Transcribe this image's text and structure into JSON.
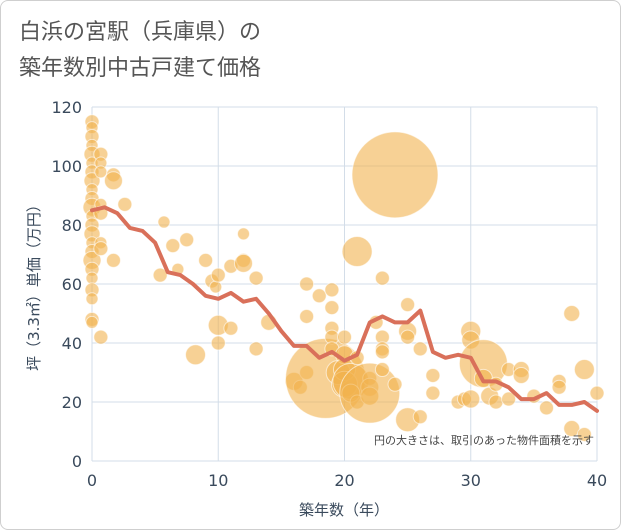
{
  "title_lines": [
    "白浜の宮駅（兵庫県）の",
    "築年数別中古戸建て価格"
  ],
  "chart_data": {
    "type": "scatter",
    "xlabel": "築年数（年）",
    "ylabel": "坪（3.3㎡）単価（万円）",
    "xlim": [
      0,
      40
    ],
    "ylim": [
      0,
      120
    ],
    "x_ticks": [
      0,
      10,
      20,
      30,
      40
    ],
    "y_ticks": [
      0,
      20,
      40,
      60,
      80,
      100,
      120
    ],
    "grid": true,
    "note": "円の大きさは、取引のあった物件面積を示す",
    "colors": {
      "bubble": "#f2b24e",
      "line": "#d9705a",
      "grid": "#d3dde8"
    },
    "bubbles": [
      {
        "x": 0,
        "y": 115,
        "r": 7
      },
      {
        "x": 0,
        "y": 113,
        "r": 6
      },
      {
        "x": 0,
        "y": 110,
        "r": 7
      },
      {
        "x": 0,
        "y": 107,
        "r": 6
      },
      {
        "x": 0,
        "y": 104,
        "r": 8
      },
      {
        "x": 0,
        "y": 101,
        "r": 6
      },
      {
        "x": 0,
        "y": 98,
        "r": 7
      },
      {
        "x": 0,
        "y": 95,
        "r": 8
      },
      {
        "x": 0,
        "y": 92,
        "r": 6
      },
      {
        "x": 0,
        "y": 89,
        "r": 7
      },
      {
        "x": 0,
        "y": 86,
        "r": 9
      },
      {
        "x": 0,
        "y": 83,
        "r": 6
      },
      {
        "x": 0,
        "y": 80,
        "r": 7
      },
      {
        "x": 0,
        "y": 77,
        "r": 8
      },
      {
        "x": 0,
        "y": 74,
        "r": 6
      },
      {
        "x": 0,
        "y": 71,
        "r": 7
      },
      {
        "x": 0,
        "y": 68,
        "r": 9
      },
      {
        "x": 0,
        "y": 65,
        "r": 7
      },
      {
        "x": 0,
        "y": 62,
        "r": 6
      },
      {
        "x": 0,
        "y": 58,
        "r": 7
      },
      {
        "x": 0,
        "y": 55,
        "r": 6
      },
      {
        "x": 0,
        "y": 48,
        "r": 7
      },
      {
        "x": 0,
        "y": 47,
        "r": 6
      },
      {
        "x": 0.7,
        "y": 104,
        "r": 7
      },
      {
        "x": 0.7,
        "y": 101,
        "r": 6
      },
      {
        "x": 0.7,
        "y": 98,
        "r": 6
      },
      {
        "x": 0.7,
        "y": 87,
        "r": 6
      },
      {
        "x": 0.7,
        "y": 84,
        "r": 7
      },
      {
        "x": 0.7,
        "y": 74,
        "r": 6
      },
      {
        "x": 0.7,
        "y": 72,
        "r": 7
      },
      {
        "x": 0.7,
        "y": 42,
        "r": 7
      },
      {
        "x": 1.7,
        "y": 97,
        "r": 7
      },
      {
        "x": 1.7,
        "y": 95,
        "r": 9
      },
      {
        "x": 1.7,
        "y": 68,
        "r": 7
      },
      {
        "x": 2.6,
        "y": 87,
        "r": 7
      },
      {
        "x": 5.4,
        "y": 63,
        "r": 7
      },
      {
        "x": 5.7,
        "y": 81,
        "r": 6
      },
      {
        "x": 6.4,
        "y": 73,
        "r": 7
      },
      {
        "x": 6.8,
        "y": 65,
        "r": 6
      },
      {
        "x": 7.5,
        "y": 75,
        "r": 7
      },
      {
        "x": 8.2,
        "y": 36,
        "r": 10
      },
      {
        "x": 9.0,
        "y": 68,
        "r": 7
      },
      {
        "x": 9.5,
        "y": 61,
        "r": 7
      },
      {
        "x": 9.8,
        "y": 59,
        "r": 6
      },
      {
        "x": 10.0,
        "y": 63,
        "r": 7
      },
      {
        "x": 10.0,
        "y": 46,
        "r": 10
      },
      {
        "x": 10.0,
        "y": 40,
        "r": 7
      },
      {
        "x": 11.0,
        "y": 66,
        "r": 7
      },
      {
        "x": 11.0,
        "y": 45,
        "r": 7
      },
      {
        "x": 12.0,
        "y": 77,
        "r": 6
      },
      {
        "x": 12.0,
        "y": 68,
        "r": 7
      },
      {
        "x": 12.0,
        "y": 67,
        "r": 9
      },
      {
        "x": 13.0,
        "y": 62,
        "r": 7
      },
      {
        "x": 13.0,
        "y": 38,
        "r": 7
      },
      {
        "x": 14.0,
        "y": 47,
        "r": 8
      },
      {
        "x": 16.0,
        "y": 27,
        "r": 9
      },
      {
        "x": 16.5,
        "y": 25,
        "r": 7
      },
      {
        "x": 17.0,
        "y": 60,
        "r": 7
      },
      {
        "x": 17.0,
        "y": 49,
        "r": 7
      },
      {
        "x": 17.0,
        "y": 30,
        "r": 7
      },
      {
        "x": 18.0,
        "y": 56,
        "r": 7
      },
      {
        "x": 18.5,
        "y": 28,
        "r": 40
      },
      {
        "x": 19.0,
        "y": 58,
        "r": 7
      },
      {
        "x": 19.0,
        "y": 52,
        "r": 7
      },
      {
        "x": 19.0,
        "y": 45,
        "r": 7
      },
      {
        "x": 19.0,
        "y": 42,
        "r": 7
      },
      {
        "x": 19.0,
        "y": 38,
        "r": 7
      },
      {
        "x": 19.5,
        "y": 30,
        "r": 12
      },
      {
        "x": 20.0,
        "y": 42,
        "r": 7
      },
      {
        "x": 20.0,
        "y": 36,
        "r": 9
      },
      {
        "x": 20.0,
        "y": 31,
        "r": 11
      },
      {
        "x": 20.0,
        "y": 26,
        "r": 13
      },
      {
        "x": 20.5,
        "y": 27,
        "r": 18
      },
      {
        "x": 20.5,
        "y": 23,
        "r": 9
      },
      {
        "x": 21.0,
        "y": 71,
        "r": 15
      },
      {
        "x": 21.0,
        "y": 20,
        "r": 7
      },
      {
        "x": 21.0,
        "y": 35,
        "r": 7
      },
      {
        "x": 22.0,
        "y": 28,
        "r": 7
      },
      {
        "x": 22.0,
        "y": 25,
        "r": 9
      },
      {
        "x": 22.0,
        "y": 22,
        "r": 9
      },
      {
        "x": 22.0,
        "y": 23,
        "r": 30
      },
      {
        "x": 22.5,
        "y": 47,
        "r": 7
      },
      {
        "x": 23.0,
        "y": 62,
        "r": 7
      },
      {
        "x": 23.0,
        "y": 42,
        "r": 7
      },
      {
        "x": 23.0,
        "y": 38,
        "r": 7
      },
      {
        "x": 23.0,
        "y": 37,
        "r": 7
      },
      {
        "x": 23.0,
        "y": 31,
        "r": 7
      },
      {
        "x": 24.0,
        "y": 97,
        "r": 43
      },
      {
        "x": 24.0,
        "y": 26,
        "r": 7
      },
      {
        "x": 25.0,
        "y": 53,
        "r": 7
      },
      {
        "x": 25.0,
        "y": 44,
        "r": 9
      },
      {
        "x": 25.0,
        "y": 42,
        "r": 7
      },
      {
        "x": 25.0,
        "y": 14,
        "r": 12
      },
      {
        "x": 26.0,
        "y": 38,
        "r": 7
      },
      {
        "x": 26.0,
        "y": 15,
        "r": 7
      },
      {
        "x": 27.0,
        "y": 29,
        "r": 7
      },
      {
        "x": 27.0,
        "y": 23,
        "r": 7
      },
      {
        "x": 29.0,
        "y": 20,
        "r": 7
      },
      {
        "x": 29.5,
        "y": 21,
        "r": 7
      },
      {
        "x": 30.0,
        "y": 44,
        "r": 10
      },
      {
        "x": 30.0,
        "y": 41,
        "r": 9
      },
      {
        "x": 30.0,
        "y": 21,
        "r": 9
      },
      {
        "x": 31.0,
        "y": 33,
        "r": 24
      },
      {
        "x": 31.0,
        "y": 28,
        "r": 9
      },
      {
        "x": 31.5,
        "y": 22,
        "r": 9
      },
      {
        "x": 32.0,
        "y": 26,
        "r": 7
      },
      {
        "x": 32.0,
        "y": 20,
        "r": 7
      },
      {
        "x": 33.0,
        "y": 31,
        "r": 7
      },
      {
        "x": 33.0,
        "y": 21,
        "r": 7
      },
      {
        "x": 34.0,
        "y": 31,
        "r": 8
      },
      {
        "x": 34.0,
        "y": 29,
        "r": 8
      },
      {
        "x": 35.0,
        "y": 22,
        "r": 7
      },
      {
        "x": 36.0,
        "y": 18,
        "r": 7
      },
      {
        "x": 37.0,
        "y": 27,
        "r": 7
      },
      {
        "x": 37.0,
        "y": 25,
        "r": 7
      },
      {
        "x": 38.0,
        "y": 50,
        "r": 8
      },
      {
        "x": 38.0,
        "y": 11,
        "r": 8
      },
      {
        "x": 39.0,
        "y": 31,
        "r": 10
      },
      {
        "x": 39.0,
        "y": 9,
        "r": 7
      },
      {
        "x": 40.0,
        "y": 23,
        "r": 7
      }
    ],
    "trend": {
      "x": [
        0,
        1,
        2,
        3,
        4,
        5,
        6,
        7,
        8,
        9,
        10,
        11,
        12,
        13,
        14,
        15,
        16,
        17,
        18,
        19,
        20,
        21,
        22,
        23,
        24,
        25,
        26,
        27,
        28,
        29,
        30,
        31,
        32,
        33,
        34,
        35,
        36,
        37,
        38,
        39,
        40
      ],
      "y": [
        85,
        86,
        84,
        79,
        78,
        74,
        64,
        63,
        60,
        56,
        55,
        57,
        54,
        55,
        50,
        44,
        39,
        39,
        35,
        37,
        34,
        36,
        47,
        49,
        47,
        47,
        51,
        37,
        35,
        36,
        35,
        27,
        27,
        25,
        21,
        21,
        23,
        19,
        19,
        20,
        17
      ]
    }
  }
}
